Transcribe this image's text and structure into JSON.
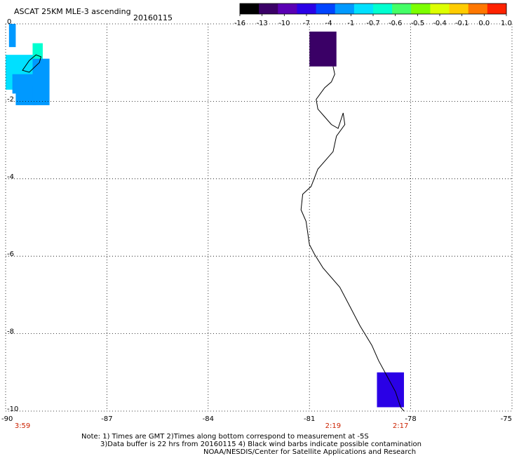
{
  "header": {
    "title": "ASCAT 25KM MLE-3 ascending",
    "date": "20160115"
  },
  "colorbar": {
    "labels": [
      "-16",
      "-13",
      "-10",
      "-7",
      "-4",
      "-1",
      "-0.7",
      "-0.6",
      "-0.5",
      "-0.4",
      "-0.1",
      "0.0",
      "1.0"
    ],
    "colors": [
      "#000000",
      "#3a0066",
      "#5a00b4",
      "#2a00e6",
      "#0044ff",
      "#0099ff",
      "#00e0ff",
      "#00ffd0",
      "#44ff66",
      "#7dff00",
      "#ddff00",
      "#ffcc00",
      "#ff7700",
      "#ff2200"
    ]
  },
  "map": {
    "lon_range": [
      -90,
      -75
    ],
    "lat_range": [
      -10,
      0
    ],
    "lon_ticks": [
      "-90",
      "-87",
      "-84",
      "-81",
      "-78",
      "-75"
    ],
    "lat_ticks": [
      "0",
      "-2",
      "-4",
      "-6",
      "-8",
      "-10"
    ],
    "grid": "dotted",
    "times": [
      {
        "text": "3:59",
        "lon": -89.5
      },
      {
        "text": "2:19",
        "lon": -80.3
      },
      {
        "text": "2:17",
        "lon": -78.3
      }
    ],
    "cells": [
      {
        "lon": [
          -90.0,
          -89.2
        ],
        "lat": [
          -0.8,
          -1.7
        ],
        "color": "#00e0ff"
      },
      {
        "lon": [
          -89.2,
          -88.9
        ],
        "lat": [
          -0.5,
          -1.7
        ],
        "color": "#00ffd0"
      },
      {
        "lon": [
          -89.8,
          -89.2
        ],
        "lat": [
          -1.3,
          -1.8
        ],
        "color": "#0099ff"
      },
      {
        "lon": [
          -89.7,
          -89.1
        ],
        "lat": [
          -1.6,
          -2.1
        ],
        "color": "#0099ff"
      },
      {
        "lon": [
          -89.2,
          -88.7
        ],
        "lat": [
          -0.9,
          -2.1
        ],
        "color": "#0099ff"
      },
      {
        "lon": [
          -89.9,
          -89.7
        ],
        "lat": [
          -0.0,
          -0.6
        ],
        "color": "#0099ff"
      },
      {
        "lon": [
          -81.0,
          -80.2
        ],
        "lat": [
          -0.2,
          -1.1
        ],
        "color": "#3a0066"
      },
      {
        "lon": [
          -79.0,
          -78.2
        ],
        "lat": [
          -9.0,
          -9.9
        ],
        "color": "#2a00e6"
      }
    ],
    "coastline": [
      [
        -80.3,
        -1.1
      ],
      [
        -80.25,
        -1.3
      ],
      [
        -80.35,
        -1.5
      ],
      [
        -80.55,
        -1.65
      ],
      [
        -80.8,
        -1.95
      ],
      [
        -80.75,
        -2.2
      ],
      [
        -80.55,
        -2.4
      ],
      [
        -80.35,
        -2.6
      ],
      [
        -80.15,
        -2.7
      ],
      [
        -80.0,
        -2.3
      ],
      [
        -79.95,
        -2.6
      ],
      [
        -80.2,
        -2.9
      ],
      [
        -80.3,
        -3.3
      ],
      [
        -80.5,
        -3.5
      ],
      [
        -80.75,
        -3.75
      ],
      [
        -80.95,
        -4.2
      ],
      [
        -81.2,
        -4.4
      ],
      [
        -81.25,
        -4.8
      ],
      [
        -81.1,
        -5.1
      ],
      [
        -81.0,
        -5.7
      ],
      [
        -80.85,
        -5.95
      ],
      [
        -80.6,
        -6.3
      ],
      [
        -80.1,
        -6.8
      ],
      [
        -79.8,
        -7.3
      ],
      [
        -79.5,
        -7.8
      ],
      [
        -79.15,
        -8.3
      ],
      [
        -78.95,
        -8.7
      ],
      [
        -78.7,
        -9.1
      ],
      [
        -78.45,
        -9.5
      ],
      [
        -78.3,
        -9.9
      ],
      [
        -78.2,
        -10.0
      ]
    ],
    "island": [
      [
        -89.5,
        -1.2
      ],
      [
        -89.3,
        -0.95
      ],
      [
        -89.1,
        -0.8
      ],
      [
        -88.95,
        -0.85
      ],
      [
        -89.0,
        -1.0
      ],
      [
        -89.3,
        -1.25
      ],
      [
        -89.5,
        -1.2
      ]
    ]
  },
  "notes": {
    "line1": "Note: 1) Times are GMT 2)Times along bottom correspond to measurement at -5S",
    "line2": "3)Data buffer is 22 hrs from 20160115 4) Black wind barbs indicate possible contamination",
    "line3": "NOAA/NESDIS/Center for Satellite Applications and Research"
  }
}
